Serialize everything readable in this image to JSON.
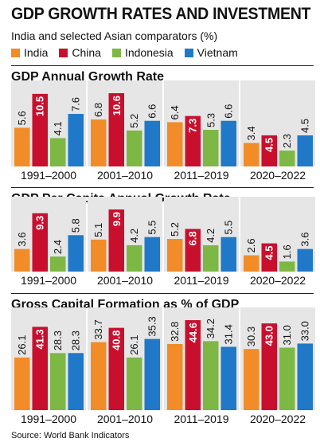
{
  "header": {
    "title": "GDP GROWTH RATES AND INVESTMENT",
    "subtitle": "India and selected Asian comparators (%)"
  },
  "legend": [
    {
      "label": "India",
      "color": "#F28C28"
    },
    {
      "label": "China",
      "color": "#C8102E"
    },
    {
      "label": "Indonesia",
      "color": "#7DB845"
    },
    {
      "label": "Vietnam",
      "color": "#1F78C8"
    }
  ],
  "source": "Source: World Bank Indicators",
  "chart_data": [
    {
      "type": "bar",
      "title": "GDP Annual Growth Rate",
      "categories": [
        "1991–2000",
        "2001–2010",
        "2011–2019",
        "2020–2022"
      ],
      "series": [
        {
          "name": "India",
          "values": [
            5.6,
            6.8,
            6.4,
            3.4
          ],
          "labels": [
            "5.6",
            "6.8",
            "6.4",
            "3.4"
          ]
        },
        {
          "name": "China",
          "values": [
            10.5,
            10.6,
            7.3,
            4.5
          ],
          "labels": [
            "10.5",
            "10.6",
            "7.3",
            "4.5"
          ]
        },
        {
          "name": "Indonesia",
          "values": [
            4.1,
            5.2,
            5.3,
            2.3
          ],
          "labels": [
            "4.1",
            "5.2",
            "5.3",
            "2.3"
          ]
        },
        {
          "name": "Vietnam",
          "values": [
            7.6,
            6.6,
            6.6,
            4.5
          ],
          "labels": [
            "7.6",
            "6.6",
            "6.6",
            "4.5"
          ]
        }
      ]
    },
    {
      "type": "bar",
      "title": "GDP Per Capita Annual Growth Rate",
      "categories": [
        "1991–2000",
        "2001–2010",
        "2011–2019",
        "2020–2022"
      ],
      "series": [
        {
          "name": "India",
          "values": [
            3.6,
            5.1,
            5.2,
            2.6
          ],
          "labels": [
            "3.6",
            "5.1",
            "5.2",
            "2.6"
          ]
        },
        {
          "name": "China",
          "values": [
            9.3,
            9.9,
            6.8,
            4.5
          ],
          "labels": [
            "9.3",
            "9.9",
            "6.8",
            "4.5"
          ]
        },
        {
          "name": "Indonesia",
          "values": [
            2.4,
            4.2,
            4.2,
            1.6
          ],
          "labels": [
            "2.4",
            "4.2",
            "4.2",
            "1.6"
          ]
        },
        {
          "name": "Vietnam",
          "values": [
            5.8,
            5.5,
            5.5,
            3.6
          ],
          "labels": [
            "5.8",
            "5.5",
            "5.5",
            "3.6"
          ]
        }
      ]
    },
    {
      "type": "bar",
      "title": "Gross Capital Formation as % of GDP",
      "categories": [
        "1991–2000",
        "2001–2010",
        "2011–2019",
        "2020–2022"
      ],
      "series": [
        {
          "name": "India",
          "values": [
            26.1,
            33.7,
            32.8,
            30.3
          ],
          "labels": [
            "26.1",
            "33.7",
            "32.8",
            "30.3"
          ]
        },
        {
          "name": "China",
          "values": [
            41.3,
            40.8,
            44.6,
            43.0
          ],
          "labels": [
            "41.3",
            "40.8",
            "44.6",
            "43.0"
          ]
        },
        {
          "name": "Indonesia",
          "values": [
            28.3,
            26.1,
            34.2,
            31.0
          ],
          "labels": [
            "28.3",
            "26.1",
            "34.2",
            "31.0"
          ]
        },
        {
          "name": "Vietnam",
          "values": [
            28.3,
            35.3,
            31.4,
            33.0
          ],
          "labels": [
            "28.3",
            "35.3",
            "31.4",
            "33.0"
          ]
        }
      ]
    }
  ]
}
